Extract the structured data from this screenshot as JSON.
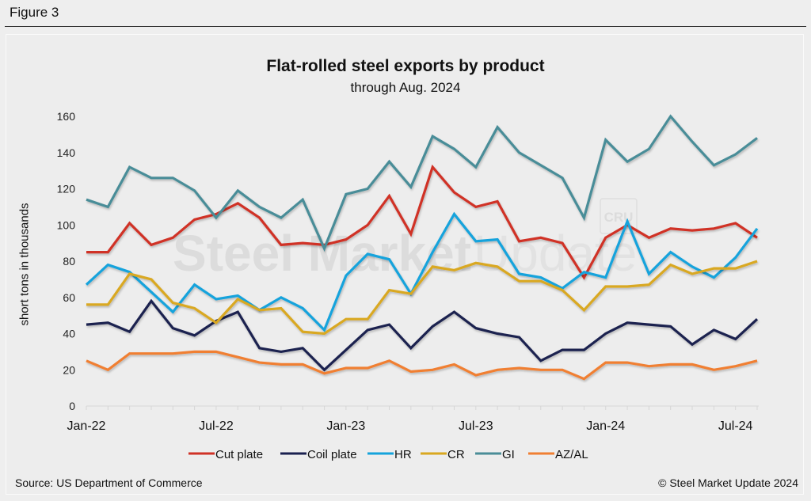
{
  "figure_label": "Figure 3",
  "source": "Source: US Department of Commerce",
  "copyright": "© Steel Market Update 2024",
  "watermark": {
    "bold": "Steel Market",
    "light": "Update",
    "badge": "CRU"
  },
  "chart_data": {
    "type": "line",
    "title": "Flat-rolled steel exports by product",
    "subtitle": "through Aug. 2024",
    "xlabel": "",
    "ylabel": "short tons in thousands",
    "ylim": [
      0,
      160
    ],
    "yticks": [
      0,
      20,
      40,
      60,
      80,
      100,
      120,
      140,
      160
    ],
    "grid": false,
    "legend_position": "bottom",
    "x": [
      "Jan-22",
      "Feb-22",
      "Mar-22",
      "Apr-22",
      "May-22",
      "Jun-22",
      "Jul-22",
      "Aug-22",
      "Sep-22",
      "Oct-22",
      "Nov-22",
      "Dec-22",
      "Jan-23",
      "Feb-23",
      "Mar-23",
      "Apr-23",
      "May-23",
      "Jun-23",
      "Jul-23",
      "Aug-23",
      "Sep-23",
      "Oct-23",
      "Nov-23",
      "Dec-23",
      "Jan-24",
      "Feb-24",
      "Mar-24",
      "Apr-24",
      "May-24",
      "Jun-24",
      "Jul-24",
      "Aug-24"
    ],
    "xtick_labels": [
      {
        "index": 0,
        "label": "Jan-22"
      },
      {
        "index": 6,
        "label": "Jul-22"
      },
      {
        "index": 12,
        "label": "Jan-23"
      },
      {
        "index": 18,
        "label": "Jul-23"
      },
      {
        "index": 24,
        "label": "Jan-24"
      },
      {
        "index": 30,
        "label": "Jul-24"
      }
    ],
    "series": [
      {
        "name": "Cut plate",
        "color": "#d03227",
        "values": [
          85,
          85,
          101,
          89,
          93,
          103,
          106,
          112,
          104,
          89,
          90,
          89,
          92,
          100,
          116,
          95,
          132,
          118,
          110,
          113,
          91,
          93,
          90,
          71,
          93,
          100,
          93,
          98,
          97,
          98,
          101,
          93
        ]
      },
      {
        "name": "Coil plate",
        "color": "#1a2150",
        "values": [
          45,
          46,
          41,
          58,
          43,
          39,
          47,
          52,
          32,
          30,
          32,
          20,
          31,
          42,
          45,
          32,
          44,
          52,
          43,
          40,
          38,
          25,
          31,
          31,
          40,
          46,
          45,
          44,
          34,
          42,
          37,
          48
        ]
      },
      {
        "name": "HR",
        "color": "#15a3dc",
        "values": [
          67,
          78,
          74,
          63,
          52,
          67,
          59,
          61,
          53,
          60,
          54,
          42,
          72,
          84,
          81,
          62,
          85,
          106,
          91,
          92,
          73,
          71,
          65,
          74,
          71,
          102,
          73,
          85,
          77,
          71,
          82,
          98
        ]
      },
      {
        "name": "CR",
        "color": "#d9a820",
        "values": [
          56,
          56,
          73,
          70,
          57,
          54,
          46,
          59,
          53,
          54,
          41,
          40,
          48,
          48,
          64,
          62,
          77,
          75,
          79,
          77,
          69,
          69,
          64,
          53,
          66,
          66,
          67,
          78,
          73,
          76,
          76,
          80
        ]
      },
      {
        "name": "GI",
        "color": "#4a8d98",
        "values": [
          114,
          110,
          132,
          126,
          126,
          119,
          104,
          119,
          110,
          104,
          114,
          87,
          117,
          120,
          135,
          121,
          149,
          142,
          132,
          154,
          140,
          133,
          126,
          104,
          147,
          135,
          142,
          160,
          146,
          133,
          139,
          148
        ]
      },
      {
        "name": "AZ/AL",
        "color": "#f07f33",
        "values": [
          25,
          20,
          29,
          29,
          29,
          30,
          30,
          27,
          24,
          23,
          23,
          18,
          21,
          21,
          25,
          19,
          20,
          23,
          17,
          20,
          21,
          20,
          20,
          15,
          24,
          24,
          22,
          23,
          23,
          20,
          22,
          25
        ]
      }
    ]
  }
}
